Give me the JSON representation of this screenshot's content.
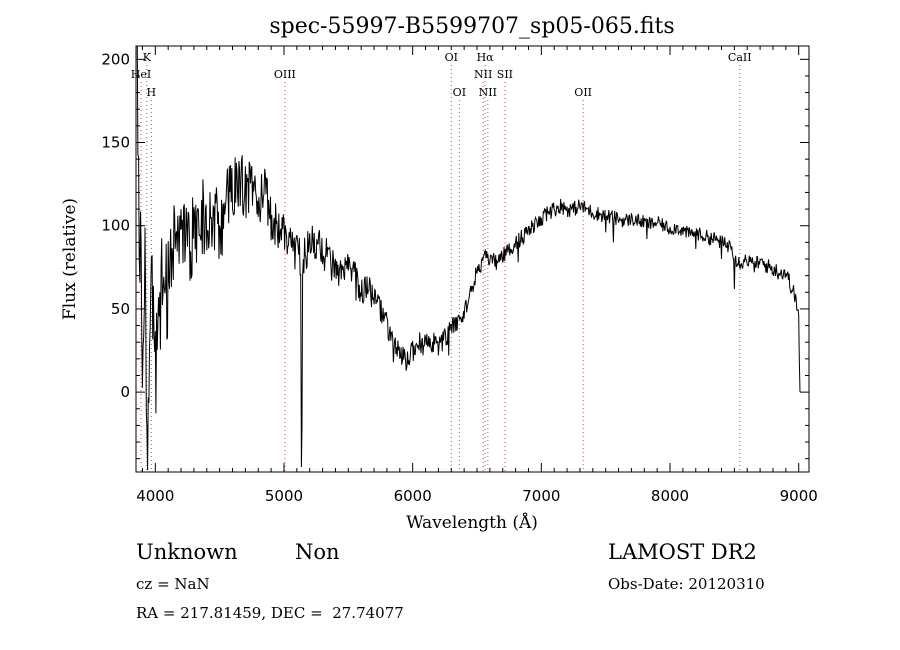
{
  "chart_data": {
    "type": "line",
    "title": "spec-55997-B5599707_sp05-065.fits",
    "xlabel": "Wavelength (Å)",
    "ylabel": "Flux (relative)",
    "xlim": [
      3850,
      9080
    ],
    "ylim": [
      -48,
      208
    ],
    "xticks": [
      4000,
      5000,
      6000,
      7000,
      8000,
      9000
    ],
    "yticks": [
      0,
      50,
      100,
      150,
      200
    ],
    "grid": false,
    "series": [
      {
        "color": "#000000",
        "anchors": [
          [
            3860,
            200
          ],
          [
            3880,
            85
          ],
          [
            3900,
            30
          ],
          [
            3920,
            70
          ],
          [
            3940,
            -40
          ],
          [
            3960,
            40
          ],
          [
            3980,
            55
          ],
          [
            4000,
            15
          ],
          [
            4050,
            65
          ],
          [
            4100,
            60
          ],
          [
            4150,
            90
          ],
          [
            4200,
            85
          ],
          [
            4250,
            95
          ],
          [
            4300,
            90
          ],
          [
            4350,
            110
          ],
          [
            4400,
            100
          ],
          [
            4450,
            110
          ],
          [
            4500,
            95
          ],
          [
            4550,
            115
          ],
          [
            4600,
            120
          ],
          [
            4650,
            125
          ],
          [
            4700,
            122
          ],
          [
            4750,
            125
          ],
          [
            4800,
            115
          ],
          [
            4850,
            118
          ],
          [
            4900,
            105
          ],
          [
            4950,
            100
          ],
          [
            5000,
            95
          ],
          [
            5050,
            90
          ],
          [
            5100,
            85
          ],
          [
            5150,
            80
          ],
          [
            5200,
            88
          ],
          [
            5250,
            90
          ],
          [
            5300,
            85
          ],
          [
            5350,
            80
          ],
          [
            5400,
            72
          ],
          [
            5450,
            70
          ],
          [
            5500,
            75
          ],
          [
            5550,
            70
          ],
          [
            5600,
            60
          ],
          [
            5650,
            65
          ],
          [
            5700,
            55
          ],
          [
            5750,
            50
          ],
          [
            5800,
            40
          ],
          [
            5850,
            30
          ],
          [
            5900,
            22
          ],
          [
            5950,
            18
          ],
          [
            6000,
            25
          ],
          [
            6050,
            30
          ],
          [
            6100,
            28
          ],
          [
            6150,
            30
          ],
          [
            6200,
            28
          ],
          [
            6250,
            32
          ],
          [
            6300,
            38
          ],
          [
            6350,
            42
          ],
          [
            6400,
            48
          ],
          [
            6450,
            60
          ],
          [
            6500,
            72
          ],
          [
            6550,
            80
          ],
          [
            6600,
            80
          ],
          [
            6650,
            78
          ],
          [
            6700,
            82
          ],
          [
            6750,
            85
          ],
          [
            6800,
            90
          ],
          [
            6850,
            93
          ],
          [
            6900,
            97
          ],
          [
            6950,
            100
          ],
          [
            7000,
            103
          ],
          [
            7050,
            108
          ],
          [
            7100,
            110
          ],
          [
            7150,
            112
          ],
          [
            7200,
            110
          ],
          [
            7250,
            110
          ],
          [
            7300,
            112
          ],
          [
            7350,
            110
          ],
          [
            7400,
            108
          ],
          [
            7450,
            107
          ],
          [
            7500,
            106
          ],
          [
            7550,
            105
          ],
          [
            7600,
            104
          ],
          [
            7650,
            103
          ],
          [
            7700,
            104
          ],
          [
            7750,
            103
          ],
          [
            7800,
            102
          ],
          [
            7850,
            101
          ],
          [
            7900,
            102
          ],
          [
            7950,
            100
          ],
          [
            8000,
            98
          ],
          [
            8050,
            99
          ],
          [
            8100,
            97
          ],
          [
            8150,
            95
          ],
          [
            8200,
            96
          ],
          [
            8250,
            94
          ],
          [
            8300,
            93
          ],
          [
            8350,
            92
          ],
          [
            8400,
            90
          ],
          [
            8450,
            88
          ],
          [
            8480,
            90
          ],
          [
            8500,
            80
          ],
          [
            8550,
            78
          ],
          [
            8600,
            80
          ],
          [
            8650,
            76
          ],
          [
            8700,
            78
          ],
          [
            8750,
            76
          ],
          [
            8800,
            74
          ],
          [
            8850,
            72
          ],
          [
            8900,
            72
          ],
          [
            8950,
            62
          ],
          [
            8980,
            55
          ],
          [
            9000,
            45
          ],
          [
            9010,
            0
          ]
        ],
        "noise": [
          [
            3850,
            38
          ],
          [
            4500,
            22
          ],
          [
            5000,
            14
          ],
          [
            5500,
            9
          ],
          [
            6000,
            7
          ],
          [
            6600,
            5
          ],
          [
            7000,
            5
          ],
          [
            8000,
            4
          ],
          [
            9000,
            5
          ]
        ],
        "features": [
          [
            5135,
            -45
          ],
          [
            5140,
            -20
          ],
          [
            5560,
            55
          ],
          [
            5570,
            72
          ],
          [
            5850,
            18
          ],
          [
            6280,
            22
          ],
          [
            6820,
            78
          ],
          [
            7500,
            96
          ],
          [
            7560,
            90
          ],
          [
            7820,
            92
          ],
          [
            8200,
            86
          ],
          [
            8400,
            80
          ],
          [
            8500,
            62
          ],
          [
            8510,
            82
          ]
        ]
      }
    ],
    "line_markers": [
      {
        "label": "K",
        "x": 3934,
        "row": 0
      },
      {
        "label": "HeI",
        "x": 3889,
        "row": 1
      },
      {
        "label": "H",
        "x": 3969,
        "row": 2
      },
      {
        "label": "OIII",
        "x": 5007,
        "row": 1
      },
      {
        "label": "OI",
        "x": 6300,
        "row": 0
      },
      {
        "label": "OI",
        "x": 6363,
        "row": 2
      },
      {
        "label": "Hα",
        "x": 6563,
        "row": 0
      },
      {
        "label": "NII",
        "x": 6548,
        "row": 1
      },
      {
        "label": "NII",
        "x": 6584,
        "row": 2
      },
      {
        "label": "SII",
        "x": 6717,
        "row": 1
      },
      {
        "label": "OII",
        "x": 7325,
        "row": 2
      },
      {
        "label": "CaII",
        "x": 8542,
        "row": 0
      }
    ],
    "line_marker_color": "#c0504d"
  },
  "info": {
    "class_label": "Unknown",
    "subclass_label": "Non",
    "survey": "LAMOST DR2",
    "cz": "cz = NaN",
    "obs_date": "Obs-Date: 20120310",
    "coords": "RA = 217.81459, DEC =  27.74077"
  }
}
